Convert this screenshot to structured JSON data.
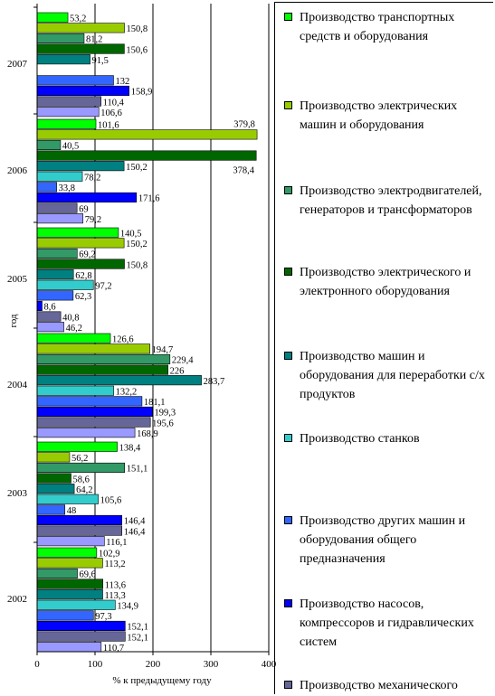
{
  "chart_data": {
    "type": "bar",
    "orientation": "horizontal",
    "xlabel": "% к предыдущему году",
    "ylabel": "год",
    "xlim": [
      0,
      400
    ],
    "xticks": [
      0,
      100,
      200,
      300,
      400
    ],
    "grid": true,
    "legend_position": "right",
    "categories": [
      "2007",
      "2006",
      "2005",
      "2004",
      "2003",
      "2002"
    ],
    "series": [
      {
        "name": "Производство транспортных средств и оборудования",
        "color": "#00ff00",
        "values": [
          53.2,
          101.6,
          140.5,
          126.6,
          138.4,
          102.9
        ],
        "labels": [
          "53,2",
          "101,6",
          "140,5",
          "126,6",
          "138,4",
          "102,9"
        ]
      },
      {
        "name": "Производство электрических машин и оборудования",
        "color": "#99cc00",
        "values": [
          150.8,
          379.8,
          150.2,
          194.7,
          56.2,
          113.2
        ],
        "labels": [
          "150,8",
          "379,8",
          "150,2",
          "194,7",
          "56,2",
          "113,2"
        ]
      },
      {
        "name": "Производство электродвигателей, генераторов и трансформаторов",
        "color": "#339966",
        "values": [
          81.2,
          40.5,
          69.2,
          229.4,
          151.1,
          69.6
        ],
        "labels": [
          "81,2",
          "40,5",
          "69,2",
          "229,4",
          "151,1",
          "69,6"
        ]
      },
      {
        "name": "Производство электрического и электронного оборудования",
        "color": "#006600",
        "values": [
          150.6,
          378.4,
          150.8,
          226,
          58.6,
          113.6
        ],
        "labels": [
          "150,6",
          "378,4",
          "150,8",
          "226",
          "58,6",
          "113,6"
        ]
      },
      {
        "name": "Производство машин и оборудования для переработки с/х продуктов",
        "color": "#008080",
        "values": [
          91.5,
          150.2,
          62.8,
          283.7,
          64.2,
          113.3
        ],
        "labels": [
          "91,5",
          "150,2",
          "62,8",
          "283,7",
          "64,2",
          "113,3"
        ]
      },
      {
        "name": "Производство станков",
        "color": "#33cccc",
        "values": [
          null,
          78.2,
          97.2,
          132.2,
          105.6,
          134.9
        ],
        "labels": [
          "",
          "78,2",
          "97,2",
          "132,2",
          "105,6",
          "134,9"
        ]
      },
      {
        "name": "Производство других машин и оборудования общего предназначения",
        "color": "#3366ff",
        "values": [
          132,
          33.8,
          62.3,
          181.1,
          48,
          97.3
        ],
        "labels": [
          "132",
          "33,8",
          "62,3",
          "181,1",
          "48",
          "97,3"
        ]
      },
      {
        "name": "Производство насосов, компрессоров и гидравлических систем",
        "color": "#0000ff",
        "values": [
          158.9,
          171.6,
          8.6,
          199.3,
          146.4,
          152.1
        ],
        "labels": [
          "158,9",
          "171,6",
          "8,6",
          "199,3",
          "146,4",
          "152,1"
        ]
      },
      {
        "name": "Производство механического",
        "color": "#666699",
        "values": [
          110.4,
          69,
          40.8,
          195.6,
          146.4,
          152.1
        ],
        "labels": [
          "110,4",
          "69",
          "40,8",
          "195,6",
          "146,4",
          "152,1"
        ]
      },
      {
        "name": "",
        "color": "#9999ff",
        "values": [
          106.6,
          79.2,
          46.2,
          168.9,
          116.1,
          110.7
        ],
        "labels": [
          "106,6",
          "79,2",
          "46,2",
          "168,9",
          "116,1",
          "110,7"
        ]
      }
    ]
  }
}
